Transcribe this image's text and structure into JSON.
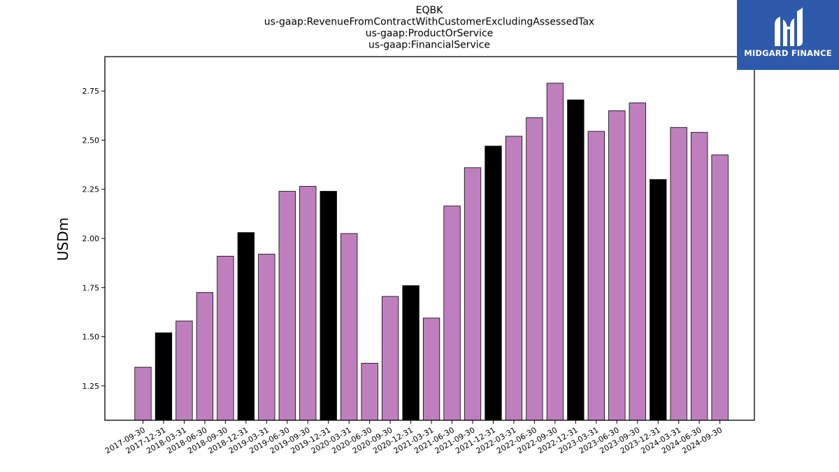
{
  "logo": {
    "text": "MIDGARD FINANCE",
    "background": "#2e5aac"
  },
  "chart_data": {
    "type": "bar",
    "title_lines": [
      "EQBK",
      "us-gaap:RevenueFromContractWithCustomerExcludingAssessedTax",
      "us-gaap:ProductOrService",
      "us-gaap:FinancialService"
    ],
    "xlabel": "",
    "ylabel": "USDm",
    "ylim": [
      1.075,
      2.925
    ],
    "yticks": [
      1.25,
      1.5,
      1.75,
      2.0,
      2.25,
      2.5,
      2.75
    ],
    "ytick_labels": [
      "1.25",
      "1.50",
      "1.75",
      "2.00",
      "2.25",
      "2.50",
      "2.75"
    ],
    "colors": {
      "quarter": "#bf7fbf",
      "year_end": "#000000",
      "edge": "#000000"
    },
    "grid": false,
    "categories": [
      "2017-09-30",
      "2017-12-31",
      "2018-03-31",
      "2018-06-30",
      "2018-09-30",
      "2018-12-31",
      "2019-03-31",
      "2019-06-30",
      "2019-09-30",
      "2019-12-31",
      "2020-03-31",
      "2020-06-30",
      "2020-09-30",
      "2020-12-31",
      "2021-03-31",
      "2021-06-30",
      "2021-09-30",
      "2021-12-31",
      "2022-03-31",
      "2022-06-30",
      "2022-09-30",
      "2022-12-31",
      "2023-03-31",
      "2023-06-30",
      "2023-09-30",
      "2023-12-31",
      "2024-03-31",
      "2024-06-30",
      "2024-09-30"
    ],
    "values": [
      1.345,
      1.52,
      1.58,
      1.725,
      1.91,
      2.03,
      1.92,
      2.24,
      2.265,
      2.24,
      2.025,
      1.365,
      1.705,
      1.76,
      1.595,
      2.165,
      2.36,
      2.47,
      2.52,
      2.615,
      2.79,
      2.705,
      2.545,
      2.65,
      2.69,
      2.3,
      2.565,
      2.54,
      2.425
    ],
    "year_end_flags": [
      false,
      true,
      false,
      false,
      false,
      true,
      false,
      false,
      false,
      true,
      false,
      false,
      false,
      true,
      false,
      false,
      false,
      true,
      false,
      false,
      false,
      true,
      false,
      false,
      false,
      true,
      false,
      false,
      false
    ]
  }
}
